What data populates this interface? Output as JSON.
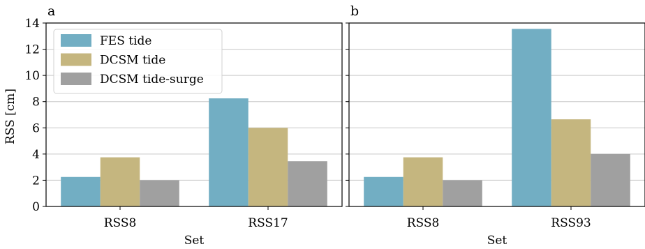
{
  "chart_data": [
    {
      "type": "bar",
      "panel_label": "a",
      "categories": [
        "RSS8",
        "RSS17"
      ],
      "series": [
        {
          "name": "FES tide",
          "values": [
            2.25,
            8.25
          ]
        },
        {
          "name": "DCSM tide",
          "values": [
            3.75,
            6.0
          ]
        },
        {
          "name": "DCSM tide-surge",
          "values": [
            2.0,
            3.45
          ]
        }
      ],
      "xlabel": "Set",
      "ylabel": "RSS [cm]",
      "ylim": [
        0,
        14
      ],
      "yticks": [
        "0",
        "2",
        "4",
        "6",
        "8",
        "10",
        "12",
        "14"
      ],
      "grid": "horizontal",
      "legend_position": "top-left"
    },
    {
      "type": "bar",
      "panel_label": "b",
      "categories": [
        "RSS8",
        "RSS93"
      ],
      "series": [
        {
          "name": "FES tide",
          "values": [
            2.25,
            13.55
          ]
        },
        {
          "name": "DCSM tide",
          "values": [
            3.75,
            6.65
          ]
        },
        {
          "name": "DCSM tide-surge",
          "values": [
            2.0,
            4.0
          ]
        }
      ],
      "xlabel": "Set",
      "ylabel": "",
      "ylim": [
        0,
        14
      ],
      "grid": "horizontal"
    }
  ],
  "colors": {
    "FES tide": "#72AEC3",
    "DCSM tide": "#C5B67F",
    "DCSM tide-surge": "#A0A0A0",
    "grid": "#c8c8c8",
    "axis": "#000000"
  }
}
